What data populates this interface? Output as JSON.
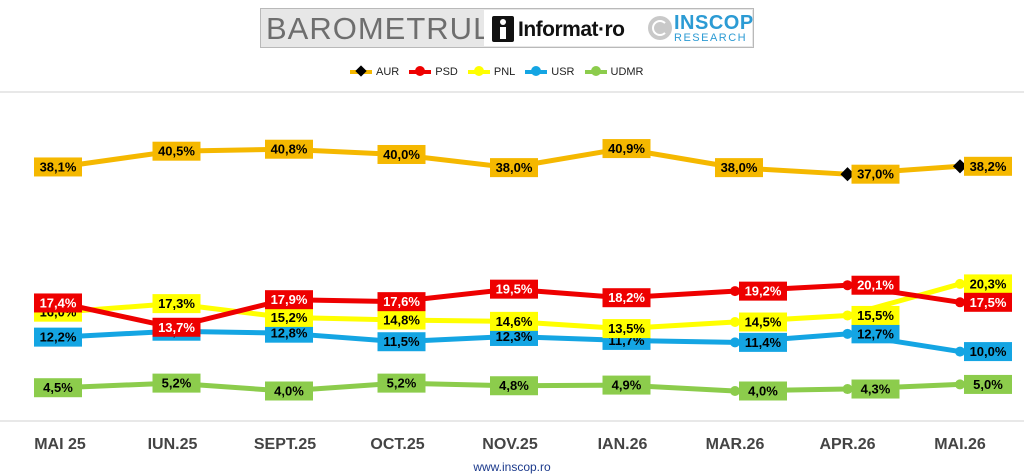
{
  "header": {
    "brand_title": "BAROMETRUL",
    "partner1": "Informat·ro",
    "partner2": "INSCOP",
    "partner2_sub": "RESEARCH"
  },
  "footer": {
    "url": "www.inscop.ro"
  },
  "colors": {
    "AUR": "#f5b800",
    "PSD": "#ee0000",
    "PNL": "#ffff00",
    "USR": "#14a5e3",
    "UDMR": "#8ccc4c"
  },
  "chart_data": {
    "type": "line",
    "title": "",
    "xlabel": "",
    "ylabel": "",
    "grid": false,
    "legend_placement": "top",
    "categories": [
      "MAI 25",
      "IUN.25",
      "SEPT.25",
      "OCT.25",
      "NOV.25",
      "IAN.26",
      "MAR.26",
      "APR.26",
      "MAI.26"
    ],
    "series": [
      {
        "name": "AUR",
        "values": [
          38.1,
          40.5,
          40.8,
          40.0,
          38.0,
          40.9,
          38.0,
          37.0,
          38.2
        ],
        "labels": [
          "38,1%",
          "40,5%",
          "40,8%",
          "40,0%",
          "38,0%",
          "40,9%",
          "38,0%",
          "37,0%",
          "38,2%"
        ]
      },
      {
        "name": "PSD",
        "values": [
          17.4,
          13.7,
          17.9,
          17.6,
          19.5,
          18.2,
          19.2,
          20.1,
          17.5
        ],
        "labels": [
          "17,4%",
          "13,7%",
          "17,9%",
          "17,6%",
          "19,5%",
          "18,2%",
          "19,2%",
          "20,1%",
          "17,5%"
        ]
      },
      {
        "name": "PNL",
        "values": [
          16.0,
          17.3,
          15.2,
          14.8,
          14.6,
          13.5,
          14.5,
          15.5,
          20.3
        ],
        "labels": [
          "16,0%",
          "17,3%",
          "15,2%",
          "14,8%",
          "14,6%",
          "13,5%",
          "14,5%",
          "15,5%",
          "20,3%"
        ]
      },
      {
        "name": "USR",
        "values": [
          12.2,
          13.1,
          12.8,
          11.5,
          12.3,
          11.7,
          11.4,
          12.7,
          10.0
        ],
        "labels": [
          "12,2%",
          "13,1%",
          "12,8%",
          "11,5%",
          "12,3%",
          "11,7%",
          "11,4%",
          "12,7%",
          "10,0%"
        ]
      },
      {
        "name": "UDMR",
        "values": [
          4.5,
          5.2,
          4.0,
          5.2,
          4.8,
          4.9,
          4.0,
          4.3,
          5.0
        ],
        "labels": [
          "4,5%",
          "5,2%",
          "4,0%",
          "5,2%",
          "4,8%",
          "4,9%",
          "4,0%",
          "4,3%",
          "5,0%"
        ]
      }
    ],
    "label_positions": {
      "AUR": [
        "left",
        "center",
        "center",
        "center",
        "center",
        "center",
        "center",
        "right",
        "right"
      ],
      "PSD": [
        "left",
        "center",
        "center",
        "center",
        "center",
        "center",
        "right",
        "right",
        "right"
      ],
      "PNL": [
        "left",
        "center",
        "center",
        "center",
        "center",
        "center",
        "right",
        "right",
        "right"
      ],
      "USR": [
        "left",
        "center",
        "center",
        "center",
        "center",
        "center",
        "right",
        "right",
        "right"
      ],
      "UDMR": [
        "left",
        "center",
        "center",
        "center",
        "center",
        "center",
        "right",
        "right",
        "right"
      ]
    },
    "aur_diamond_points": [
      7,
      8
    ]
  }
}
